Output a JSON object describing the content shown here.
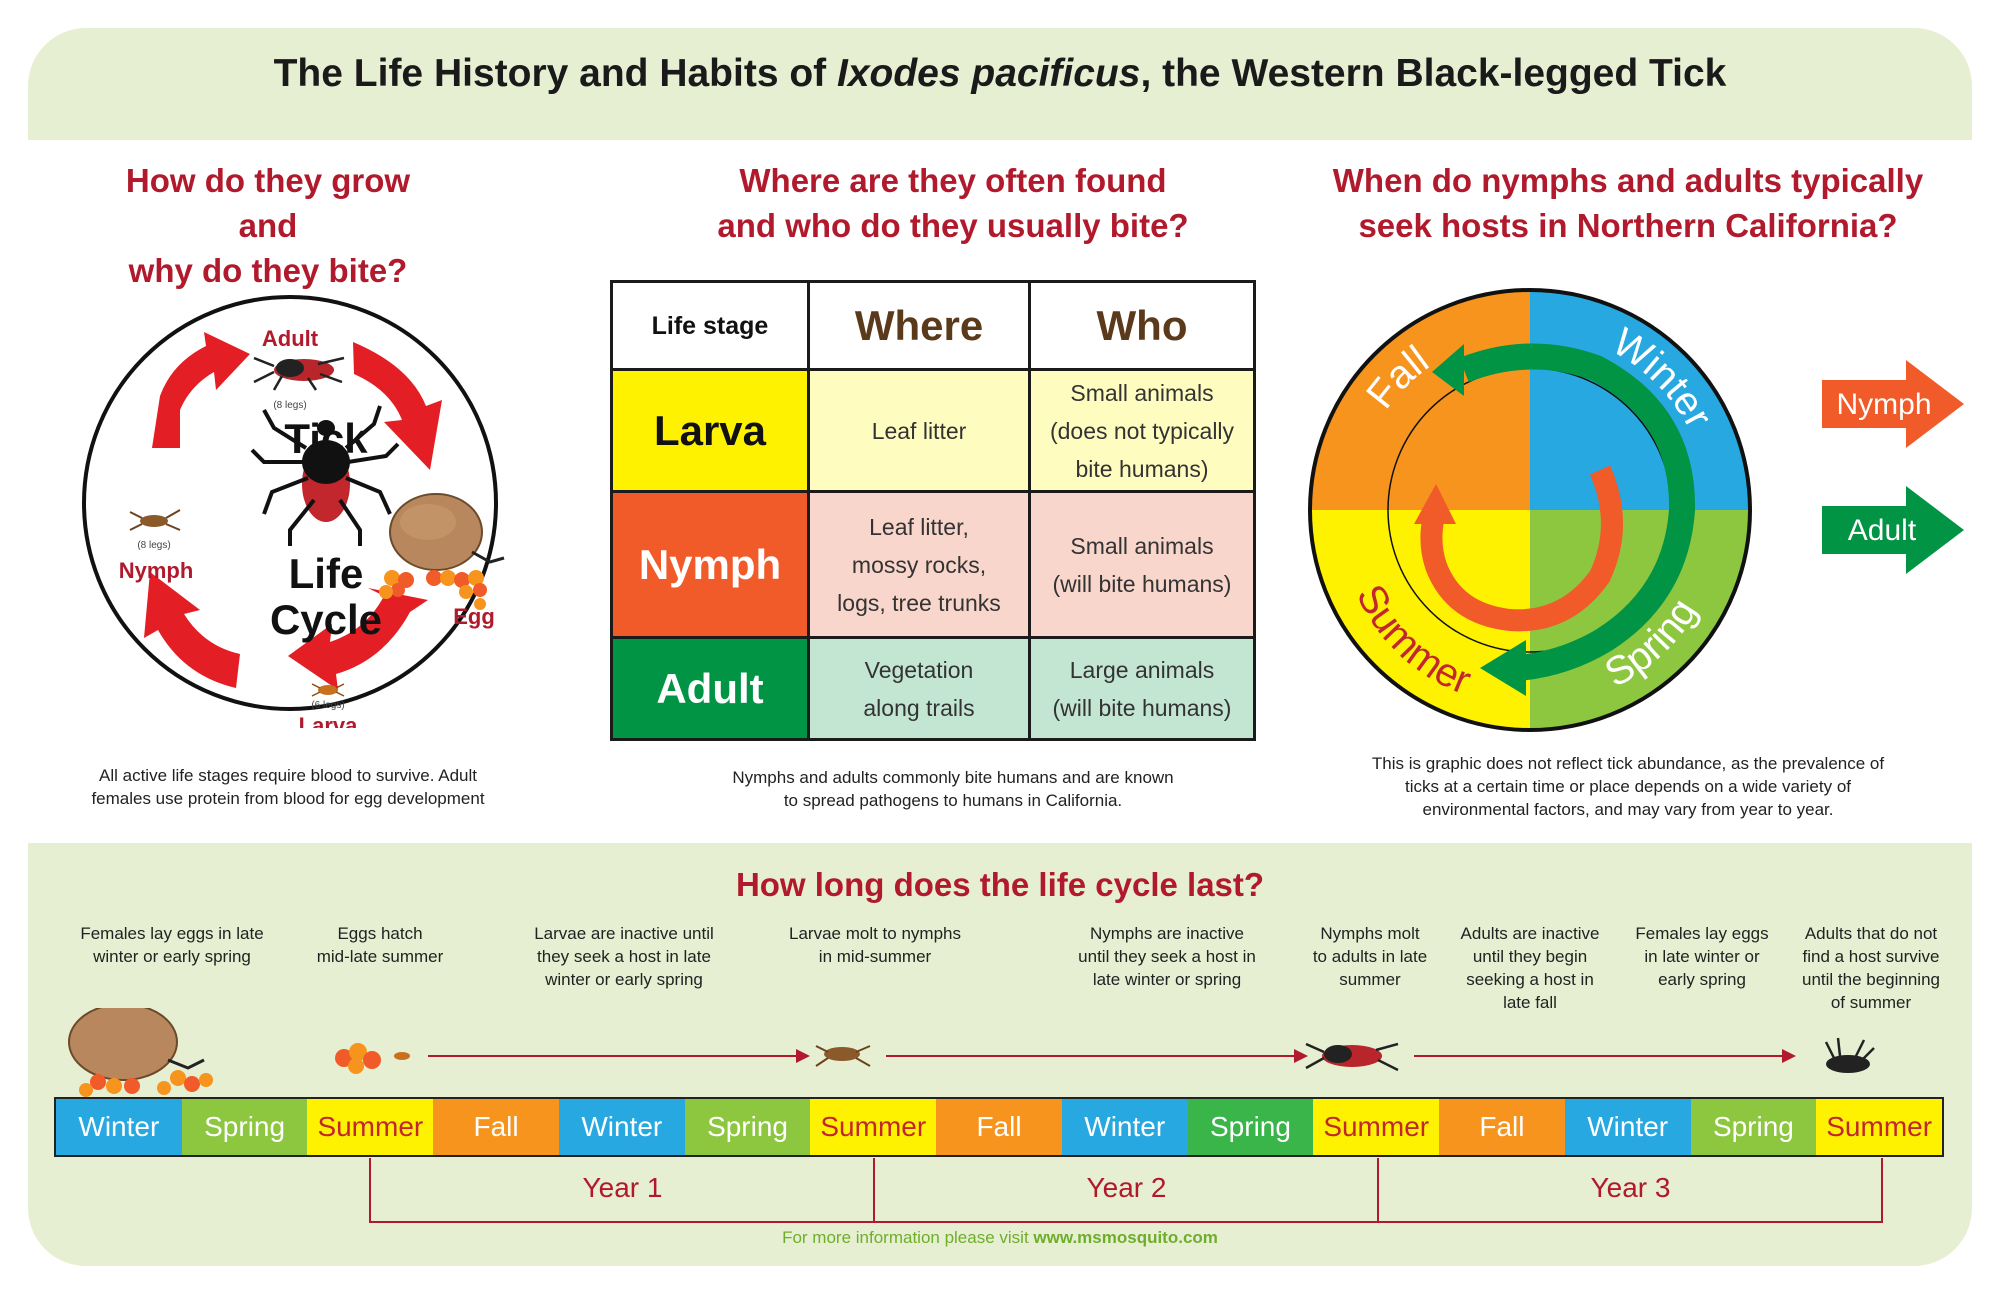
{
  "title": {
    "prefix": "The Life History and Habits of ",
    "species": "Ixodes pacificus",
    "suffix": ", the Western Black-legged Tick"
  },
  "panel1": {
    "question_line1": "How do they grow and",
    "question_line2": "why do they bite?",
    "center_line1": "Tick",
    "center_line2": "Life",
    "center_line3": "Cycle",
    "adult": "Adult",
    "adult_legs": "(8 legs)",
    "nymph": "Nymph",
    "nymph_legs": "(8 legs)",
    "egg": "Egg",
    "larva": "Larva",
    "larva_legs": "(6 legs)",
    "caption_line1": "All active life stages require blood to survive. Adult",
    "caption_line2": "females use protein from blood for egg development"
  },
  "panel2": {
    "question_line1": "Where are they often found",
    "question_line2": "and who do they usually bite?",
    "headers": [
      "Life stage",
      "Where",
      "Who"
    ],
    "rows": [
      {
        "stage": "Larva",
        "where": [
          "Leaf litter"
        ],
        "who": [
          "Small animals",
          "(does not typically",
          "bite humans)"
        ]
      },
      {
        "stage": "Nymph",
        "where": [
          "Leaf litter,",
          "mossy rocks,",
          "logs, tree trunks"
        ],
        "who": [
          "Small animals",
          "(will bite humans)"
        ]
      },
      {
        "stage": "Adult",
        "where": [
          "Vegetation",
          "along trails"
        ],
        "who": [
          "Large animals",
          "(will bite humans)"
        ]
      }
    ],
    "caption_line1": "Nymphs and adults commonly bite humans and are known",
    "caption_line2": "to spread pathogens to humans in California."
  },
  "panel3": {
    "question_line1": "When do nymphs and adults typically",
    "question_line2": "seek hosts in Northern California?",
    "seasons": {
      "fall": "Fall",
      "winter": "Winter",
      "summer": "Summer",
      "spring": "Spring"
    },
    "legend": {
      "nymph": "Nymph",
      "adult": "Adult"
    },
    "caption_line1": "This is graphic does not reflect tick abundance, as the prevalence of",
    "caption_line2": "ticks at a certain time or place depends on a wide variety of",
    "caption_line3": "environmental factors, and may vary from year to year."
  },
  "timeline": {
    "question": "How long does the life cycle last?",
    "events": [
      [
        "Females lay eggs in late",
        "winter or early spring"
      ],
      [
        "Eggs hatch",
        "mid-late summer"
      ],
      [
        "Larvae are inactive until",
        "they seek a host in late",
        "winter or early spring"
      ],
      [
        "Larvae molt to nymphs",
        "in mid-summer"
      ],
      [
        "Nymphs are inactive",
        "until they seek a host in",
        "late winter or spring"
      ],
      [
        "Nymphs molt",
        "to adults in late",
        "summer"
      ],
      [
        "Adults are inactive",
        "until they begin",
        "seeking a host in",
        "late fall"
      ],
      [
        "Females lay eggs",
        "in late winter or",
        "early spring"
      ],
      [
        "Adults that do not",
        "find a host survive",
        "until the beginning",
        "of summer"
      ]
    ],
    "seasons": [
      "Winter",
      "Spring",
      "Summer",
      "Fall",
      "Winter",
      "Spring",
      "Summer",
      "Fall",
      "Winter",
      "Spring",
      "Summer",
      "Fall",
      "Winter",
      "Spring",
      "Summer"
    ],
    "years": [
      "Year 1",
      "Year 2",
      "Year 3"
    ]
  },
  "colors": {
    "winter": "#27a8e0",
    "spring": "#8dc63f",
    "summer": "#fff200",
    "fall": "#f7941d",
    "nymph": "#f15a29",
    "adult": "#009444",
    "accent_red": "#b01a2c"
  },
  "footer": {
    "prefix": "For more information please visit ",
    "link": "www.msmosquito.com"
  }
}
